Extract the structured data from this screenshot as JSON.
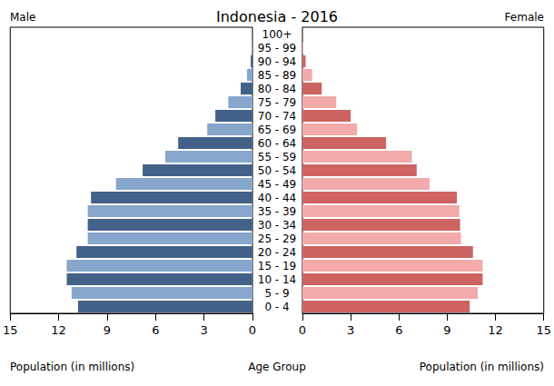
{
  "chart_data": {
    "type": "bar",
    "orientation": "horizontal",
    "title": "Indonesia - 2016",
    "xlabel": "Population (in millions)",
    "ylabel": "Age Group",
    "categories": [
      "0 - 4",
      "5 - 9",
      "10 - 14",
      "15 - 19",
      "20 - 24",
      "25 - 29",
      "30 - 34",
      "35 - 39",
      "40 - 44",
      "45 - 49",
      "50 - 54",
      "55 - 59",
      "60 - 64",
      "65 - 69",
      "70 - 74",
      "75 - 79",
      "80 - 84",
      "85 - 89",
      "90 - 94",
      "95 - 99",
      "100+"
    ],
    "series": [
      {
        "name": "Male",
        "values": [
          10.8,
          11.2,
          11.5,
          11.5,
          10.9,
          10.2,
          10.2,
          10.2,
          10.0,
          8.45,
          6.8,
          5.4,
          4.6,
          2.8,
          2.3,
          1.5,
          0.73,
          0.34,
          0.11,
          0.03,
          0.005
        ],
        "colors": [
          "#44618a",
          "#87a6cc",
          "#44618a",
          "#87a6cc",
          "#44618a",
          "#87a6cc",
          "#44618a",
          "#87a6cc",
          "#44618a",
          "#87a6cc",
          "#44618a",
          "#87a6cc",
          "#44618a",
          "#87a6cc",
          "#44618a",
          "#87a6cc",
          "#44618a",
          "#87a6cc",
          "#44618a",
          "#87a6cc",
          "#44618a"
        ]
      },
      {
        "name": "Female",
        "values": [
          10.4,
          10.9,
          11.2,
          11.2,
          10.6,
          9.85,
          9.8,
          9.75,
          9.6,
          7.9,
          7.1,
          6.8,
          5.2,
          3.4,
          3.0,
          2.1,
          1.2,
          0.6,
          0.2,
          0.05,
          0.01
        ],
        "colors": [
          "#cd6462",
          "#f2aaaa",
          "#cd6462",
          "#f2aaaa",
          "#cd6462",
          "#f2aaaa",
          "#cd6462",
          "#f2aaaa",
          "#cd6462",
          "#f2aaaa",
          "#cd6462",
          "#f2aaaa",
          "#cd6462",
          "#f2aaaa",
          "#cd6462",
          "#f2aaaa",
          "#cd6462",
          "#f2aaaa",
          "#cd6462",
          "#f2aaaa",
          "#cd6462"
        ]
      }
    ],
    "xlim": [
      0,
      15
    ],
    "xticks": [
      0,
      3,
      6,
      9,
      12,
      15
    ],
    "grid": false
  }
}
